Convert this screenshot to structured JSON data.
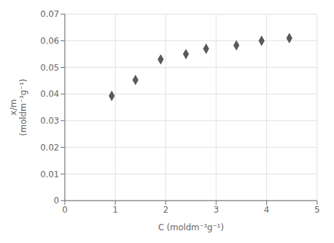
{
  "chart_data": {
    "type": "scatter",
    "x": [
      0.93,
      1.4,
      1.9,
      2.4,
      2.8,
      3.4,
      3.9,
      4.45
    ],
    "values": [
      0.0393,
      0.0453,
      0.053,
      0.055,
      0.057,
      0.0583,
      0.06,
      0.061
    ],
    "xlabel": "C (moldm⁻³g⁻¹)",
    "ylabel": "x/m\n(moldm⁻³g⁻¹)",
    "xlim": [
      0,
      5
    ],
    "ylim": [
      0,
      0.07
    ],
    "xticks": [
      0,
      1,
      2,
      3,
      4,
      5
    ],
    "yticks": [
      0,
      0.01,
      0.02,
      0.03,
      0.04,
      0.05,
      0.06,
      0.07
    ],
    "color": "#595959",
    "marker": "diamond",
    "grid": true
  }
}
